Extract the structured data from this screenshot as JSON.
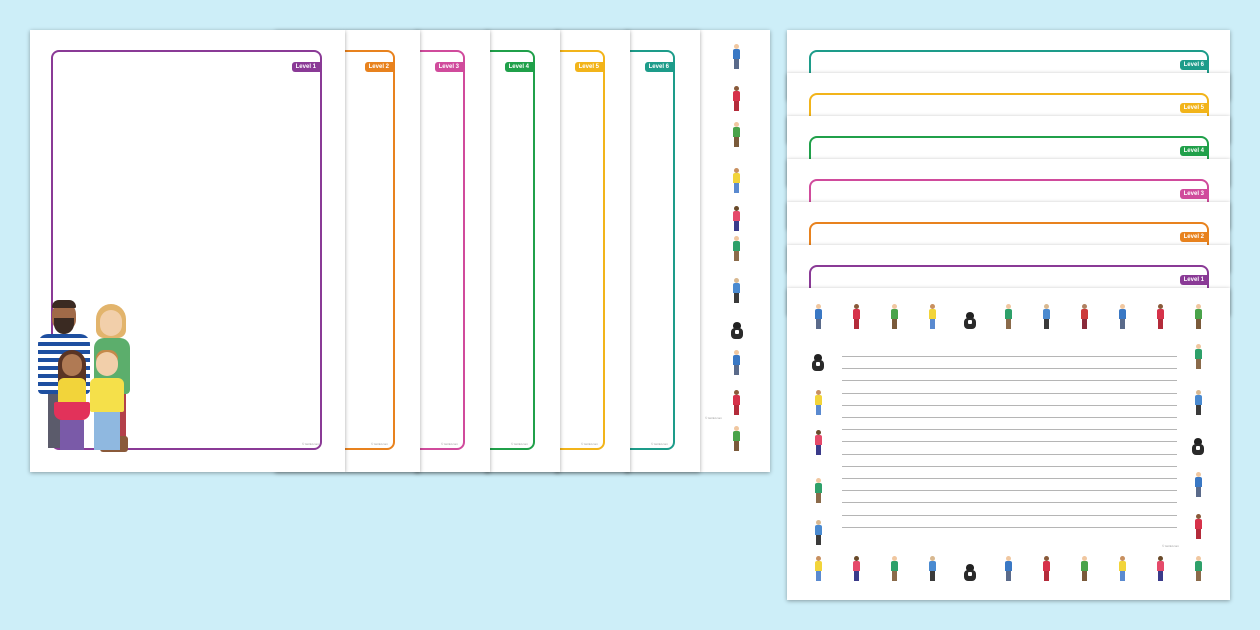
{
  "portrait_pages": [
    {
      "label": "Level 1",
      "color": "#8a3a96"
    },
    {
      "label": "Level 2",
      "color": "#e8821e"
    },
    {
      "label": "Level 3",
      "color": "#d04b9c"
    },
    {
      "label": "Level 4",
      "color": "#20a04a"
    },
    {
      "label": "Level 5",
      "color": "#f2b41a"
    },
    {
      "label": "Level 6",
      "color": "#1d9c8a"
    }
  ],
  "landscape_pages": [
    {
      "label": "Level 6",
      "color": "#1d9c8a"
    },
    {
      "label": "Level 5",
      "color": "#f2b41a"
    },
    {
      "label": "Level 4",
      "color": "#20a04a"
    },
    {
      "label": "Level 3",
      "color": "#d04b9c"
    },
    {
      "label": "Level 2",
      "color": "#e8821e"
    },
    {
      "label": "Level 1",
      "color": "#8a3a96"
    }
  ],
  "copyright": "© twinkl.com"
}
